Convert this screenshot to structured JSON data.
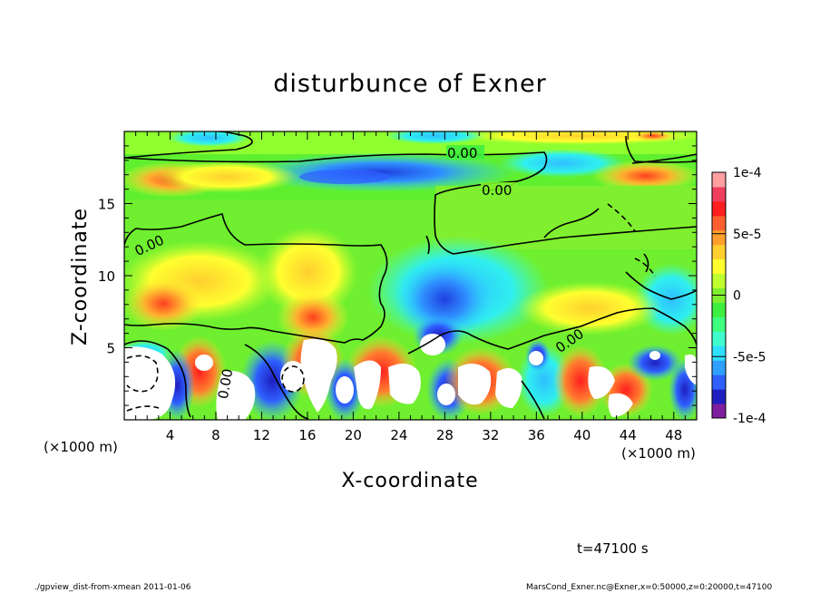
{
  "chart_data": {
    "type": "heatmap",
    "title": "disturbunce of Exner",
    "xlabel": "X-coordinate",
    "ylabel": "Z-coordinate",
    "x_unit": "(×1000 m)",
    "x_unit_right": "(×1000 m)",
    "xticks": [
      "4",
      "8",
      "12",
      "16",
      "20",
      "24",
      "28",
      "32",
      "36",
      "40",
      "44",
      "48"
    ],
    "xtick_values": [
      4,
      8,
      12,
      16,
      20,
      24,
      28,
      32,
      36,
      40,
      44,
      48
    ],
    "yticks": [
      "5",
      "10",
      "15"
    ],
    "ytick_values": [
      5,
      10,
      15
    ],
    "xlim": [
      0,
      50
    ],
    "ylim": [
      0,
      20
    ],
    "colorbar": {
      "ticks": [
        "1e-4",
        "5e-5",
        "0",
        "-5e-5",
        "-1e-4"
      ],
      "tick_values": [
        0.0001,
        5e-05,
        0,
        -5e-05,
        -0.0001
      ],
      "range": [
        -0.0001,
        0.0001
      ],
      "colors": [
        "#7f1f9f",
        "#1f1fbf",
        "#2f5fff",
        "#2f9fff",
        "#2fdfff",
        "#3fffcf",
        "#3fff7f",
        "#3fef3f",
        "#7fef2f",
        "#bfff2f",
        "#ffff2f",
        "#ffcf2f",
        "#ff9f2f",
        "#ff5f2f",
        "#ff1f1f",
        "#ef3f5f",
        "#ff9f9f"
      ]
    },
    "contour_labels": [
      "0.00",
      "0.00",
      "0.00",
      "0.00",
      "0.00"
    ],
    "footer_time": "t=47100 s",
    "footer_left": "./gpview_dist-from-xmean  2011-01-06",
    "footer_right": "MarsCond_Exner.nc@Exner,x=0:50000,z=0:20000,t=47100",
    "regions": [
      {
        "desc": "upper positive band",
        "x": [
          0,
          50
        ],
        "z": [
          16,
          19
        ],
        "value": 2e-05
      },
      {
        "desc": "blue negative anomaly",
        "x": [
          14,
          33
        ],
        "z": [
          17,
          18
        ],
        "value": -7e-05
      },
      {
        "desc": "orange maxima upper left",
        "x": [
          4,
          8
        ],
        "z": [
          16,
          17.5
        ],
        "value": 6e-05
      },
      {
        "desc": "orange maxima upper right",
        "x": [
          44,
          49
        ],
        "z": [
          16.5,
          18
        ],
        "value": 6e-05
      },
      {
        "desc": "mid negative plume",
        "x": [
          25,
          31
        ],
        "z": [
          6,
          13
        ],
        "value": -6e-05
      },
      {
        "desc": "lower positive cells",
        "x": [
          2,
          50
        ],
        "z": [
          0,
          6
        ],
        "value": 9e-05
      },
      {
        "desc": "lower negative cells",
        "x": [
          6,
          48
        ],
        "z": [
          0,
          5
        ],
        "value": -9e-05
      }
    ]
  }
}
